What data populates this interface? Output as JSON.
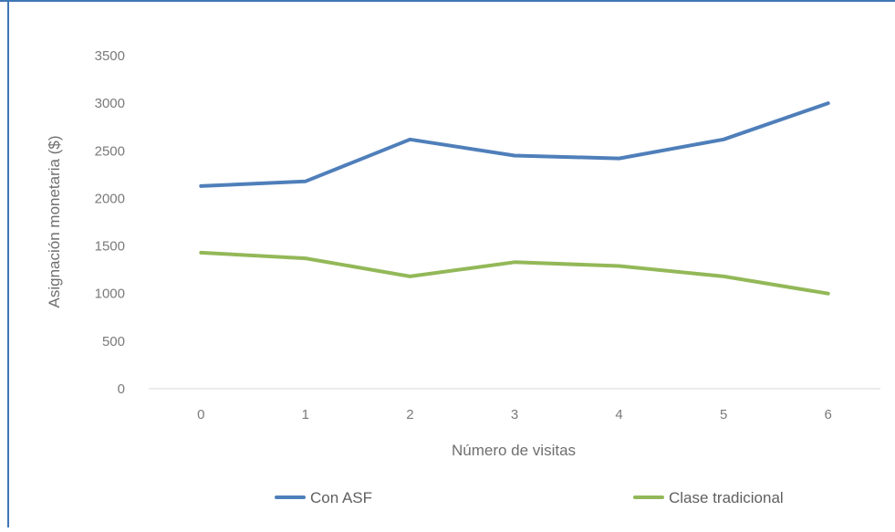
{
  "chart_data": {
    "type": "line",
    "title": "",
    "xlabel": "Número de visitas",
    "ylabel": "Asignación monetaria ($)",
    "x": [
      0,
      1,
      2,
      3,
      4,
      5,
      6
    ],
    "x_tick_labels": [
      "0",
      "1",
      "2",
      "3",
      "4",
      "5",
      "6"
    ],
    "y_ticks": [
      0,
      500,
      1000,
      1500,
      2000,
      2500,
      3000,
      3500
    ],
    "ylim": [
      0,
      3500
    ],
    "grid": false,
    "legend_position": "bottom",
    "series": [
      {
        "name": "Con ASF",
        "color": "#4f7fba",
        "values": [
          2130,
          2180,
          2620,
          2450,
          2420,
          2620,
          3000
        ]
      },
      {
        "name": "Clase tradicional",
        "color": "#93b858",
        "values": [
          1430,
          1370,
          1180,
          1330,
          1290,
          1180,
          1000
        ]
      }
    ]
  },
  "frame": {
    "border_color": "#3e76b3"
  }
}
